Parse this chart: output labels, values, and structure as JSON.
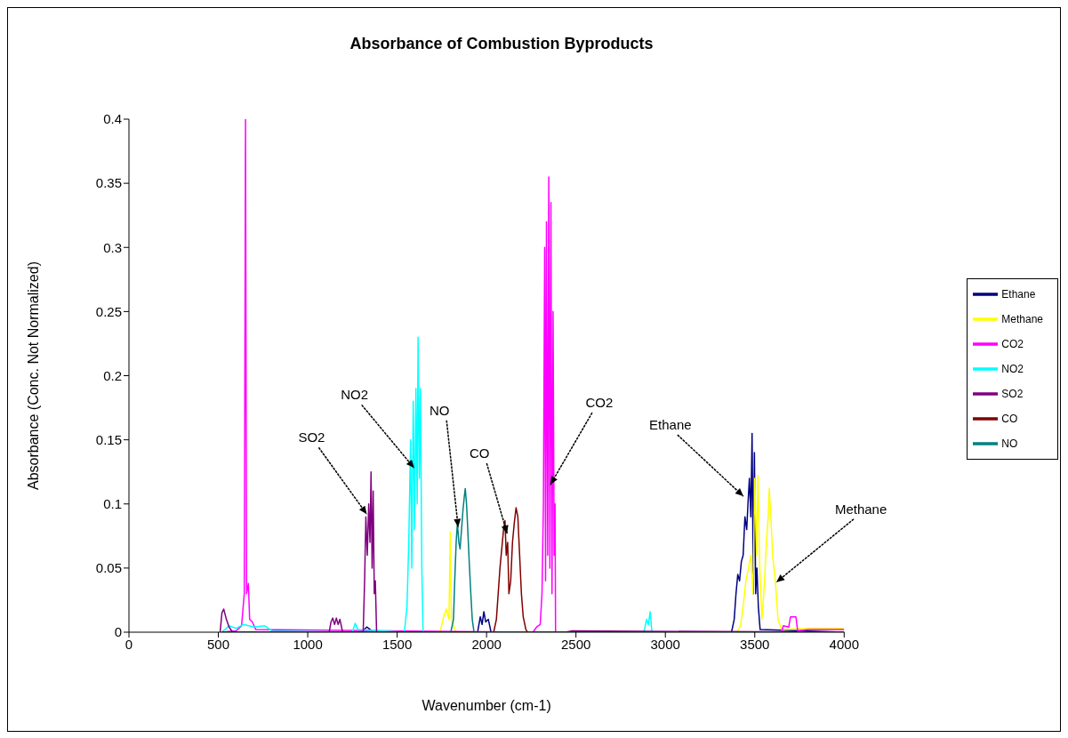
{
  "chart_data": {
    "type": "line",
    "title": "Absorbance of Combustion Byproducts",
    "xlabel": "Wavenumber (cm-1)",
    "ylabel": "Absorbance (Conc. Not Normalized)",
    "xlim": [
      0,
      4000
    ],
    "xticks": [
      0,
      500,
      1000,
      1500,
      2000,
      2500,
      3000,
      3500,
      4000
    ],
    "ylim": [
      0,
      0.4
    ],
    "yticks": [
      0,
      0.05,
      0.1,
      0.15,
      0.2,
      0.25,
      0.3,
      0.35,
      0.4
    ],
    "legend": "right",
    "series": [
      {
        "name": "Ethane",
        "color": "#000080",
        "x": [
          520,
          1300,
          1330,
          1350,
          1370,
          1950,
          1965,
          1975,
          1985,
          1995,
          2010,
          2025,
          3370,
          3385,
          3395,
          3405,
          3415,
          3425,
          3435,
          3445,
          3455,
          3462,
          3470,
          3478,
          3485,
          3492,
          3498,
          3505,
          3512,
          3520,
          3530,
          4000
        ],
        "values": [
          0,
          0,
          0.004,
          0.002,
          0,
          0,
          0.012,
          0.006,
          0.016,
          0.008,
          0.01,
          0,
          0,
          0.01,
          0.03,
          0.045,
          0.04,
          0.055,
          0.06,
          0.09,
          0.08,
          0.1,
          0.12,
          0.09,
          0.155,
          0.03,
          0.14,
          0.03,
          0.05,
          0.02,
          0.002,
          0
        ]
      },
      {
        "name": "Methane",
        "color": "#ffff00",
        "x": [
          520,
          1740,
          1760,
          1775,
          1790,
          1797,
          1803,
          1815,
          1830,
          3400,
          3420,
          3435,
          3450,
          3465,
          3478,
          3490,
          3500,
          3510,
          3518,
          3528,
          3540,
          3555,
          3565,
          3575,
          3581,
          3590,
          3600,
          3615,
          3630,
          3650,
          3800,
          4000
        ],
        "values": [
          0,
          0,
          0.012,
          0.018,
          0.01,
          0.078,
          0.01,
          0.005,
          0,
          0,
          0.005,
          0.02,
          0.04,
          0.05,
          0.06,
          0.03,
          0.12,
          0.06,
          0.122,
          0.05,
          0.01,
          0.04,
          0.07,
          0.09,
          0.112,
          0.09,
          0.06,
          0.04,
          0.01,
          0.002,
          0.003,
          0.003
        ]
      },
      {
        "name": "CO2",
        "color": "#ff00ff",
        "x": [
          520,
          600,
          630,
          645,
          652,
          658,
          668,
          675,
          690,
          710,
          2260,
          2280,
          2300,
          2310,
          2318,
          2325,
          2330,
          2335,
          2342,
          2348,
          2354,
          2360,
          2366,
          2372,
          2378,
          2383,
          2386,
          3650,
          3660,
          3690,
          3700,
          3730,
          3740,
          3800,
          4000
        ],
        "values": [
          0,
          0.001,
          0.005,
          0.03,
          0.4,
          0.03,
          0.038,
          0.01,
          0.008,
          0.002,
          0,
          0.004,
          0.006,
          0.03,
          0.1,
          0.3,
          0.04,
          0.32,
          0.06,
          0.355,
          0.05,
          0.335,
          0.03,
          0.25,
          0.06,
          0.1,
          0,
          0,
          0.005,
          0.004,
          0.012,
          0.012,
          0.001,
          0.002,
          0.002
        ]
      },
      {
        "name": "NO2",
        "color": "#00ffff",
        "x": [
          520,
          560,
          600,
          640,
          700,
          760,
          800,
          1250,
          1265,
          1280,
          1540,
          1555,
          1565,
          1575,
          1582,
          1590,
          1597,
          1605,
          1612,
          1617,
          1624,
          1630,
          1638,
          1645,
          2880,
          2895,
          2905,
          2915,
          2925,
          4000
        ],
        "values": [
          0,
          0.005,
          0.003,
          0.006,
          0.004,
          0.005,
          0.001,
          0,
          0.007,
          0.002,
          0,
          0.02,
          0.07,
          0.15,
          0.05,
          0.18,
          0.08,
          0.19,
          0.1,
          0.23,
          0.12,
          0.19,
          0.05,
          0,
          0,
          0.01,
          0.006,
          0.016,
          0,
          0
        ]
      },
      {
        "name": "SO2",
        "color": "#800080",
        "x": [
          510,
          520,
          530,
          545,
          560,
          580,
          1120,
          1130,
          1140,
          1150,
          1160,
          1170,
          1180,
          1195,
          1310,
          1318,
          1325,
          1333,
          1341,
          1348,
          1354,
          1360,
          1366,
          1372,
          1378,
          1385,
          2440,
          2480,
          4000
        ],
        "values": [
          0,
          0.015,
          0.018,
          0.01,
          0.004,
          0,
          0,
          0.008,
          0.011,
          0.006,
          0.011,
          0.006,
          0.01,
          0,
          0,
          0.04,
          0.09,
          0.06,
          0.1,
          0.07,
          0.125,
          0.05,
          0.11,
          0.03,
          0.04,
          0,
          0,
          0.001,
          0
        ]
      },
      {
        "name": "CO",
        "color": "#800000",
        "x": [
          520,
          2040,
          2055,
          2065,
          2075,
          2085,
          2095,
          2103,
          2110,
          2118,
          2125,
          2135,
          2145,
          2155,
          2165,
          2175,
          2185,
          2195,
          2205,
          2220,
          2230,
          4000
        ],
        "values": [
          0,
          0,
          0.01,
          0.03,
          0.05,
          0.065,
          0.08,
          0.087,
          0.06,
          0.07,
          0.03,
          0.04,
          0.07,
          0.085,
          0.097,
          0.09,
          0.06,
          0.03,
          0.012,
          0.002,
          0,
          0
        ]
      },
      {
        "name": "NO",
        "color": "#008080",
        "x": [
          520,
          1800,
          1815,
          1822,
          1830,
          1837,
          1845,
          1852,
          1860,
          1868,
          1875,
          1881,
          1888,
          1895,
          1903,
          1912,
          1920,
          1930,
          4000
        ],
        "values": [
          0,
          0,
          0.01,
          0.04,
          0.07,
          0.085,
          0.07,
          0.065,
          0.08,
          0.095,
          0.105,
          0.112,
          0.1,
          0.08,
          0.055,
          0.03,
          0.01,
          0,
          0
        ]
      }
    ],
    "annotations": [
      {
        "text": "SO2",
        "x": 1330,
        "y": 0.092
      },
      {
        "text": "NO2",
        "x": 1595,
        "y": 0.128
      },
      {
        "text": "NO",
        "x": 1841,
        "y": 0.082
      },
      {
        "text": "CO",
        "x": 2115,
        "y": 0.077
      },
      {
        "text": "CO2",
        "x": 2357,
        "y": 0.115
      },
      {
        "text": "Ethane",
        "x": 3436,
        "y": 0.106
      },
      {
        "text": "Methane",
        "x": 3621,
        "y": 0.039
      }
    ]
  }
}
